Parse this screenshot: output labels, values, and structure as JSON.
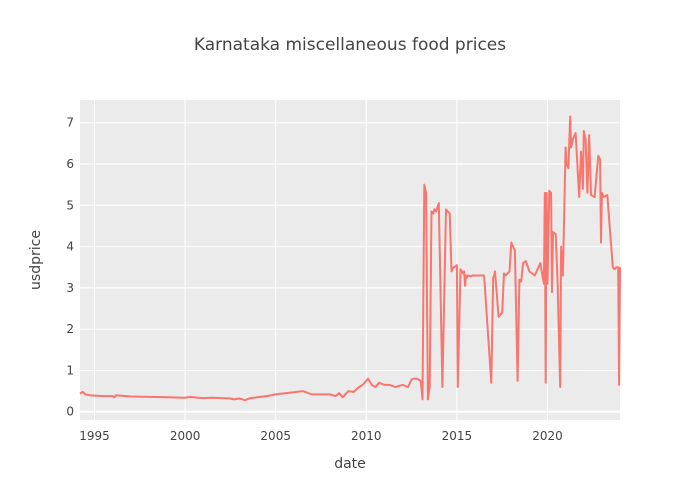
{
  "chart_data": {
    "type": "line",
    "title": "Karnataka miscellaneous food prices",
    "xlabel": "date",
    "ylabel": "usdprice",
    "xlim": [
      1994.2,
      2024.0
    ],
    "ylim": [
      -0.2,
      7.55
    ],
    "x_ticks": [
      1995,
      2000,
      2005,
      2010,
      2015,
      2020
    ],
    "y_ticks": [
      0,
      1,
      2,
      3,
      4,
      5,
      6,
      7
    ],
    "grid": true,
    "legend": "none",
    "colors": {
      "line": "#f8766d",
      "plot_bg": "#ebebeb",
      "grid": "#ffffff",
      "text": "#444444"
    },
    "series": [
      {
        "x": [
          1994.2,
          1994.35,
          1994.5,
          1994.7,
          1995.0,
          1995.5,
          1996.0,
          1996.1,
          1996.2,
          1996.4,
          1997,
          1998,
          1999,
          2000,
          2000.3,
          2000.7,
          2001,
          2001.5,
          2002,
          2002.5,
          2002.7,
          2003,
          2003.3,
          2003.6,
          2004,
          2004.5,
          2005,
          2005.5,
          2006,
          2006.5,
          2007,
          2007.5,
          2008,
          2008.3,
          2008.5,
          2008.7,
          2009,
          2009.3,
          2009.6,
          2009.8,
          2010,
          2010.1,
          2010.3,
          2010.5,
          2010.7,
          2011,
          2011.3,
          2011.6,
          2012,
          2012.3,
          2012.5,
          2012.6,
          2012.8,
          2013.0,
          2013.1,
          2013.2,
          2013.3,
          2013.4,
          2013.5,
          2013.6,
          2013.7,
          2013.75,
          2013.85,
          2014.0,
          2014.2,
          2014.4,
          2014.6,
          2014.7,
          2014.8,
          2014.85,
          2015.0,
          2015.05,
          2015.2,
          2015.35,
          2015.4,
          2015.45,
          2015.5,
          2015.55,
          2015.6,
          2015.8,
          2015.85,
          2016,
          2016.5,
          2016.9,
          2017,
          2017.05,
          2017.1,
          2017.3,
          2017.5,
          2017.6,
          2017.7,
          2017.9,
          2018,
          2018.2,
          2018.35,
          2018.45,
          2018.55,
          2018.65,
          2018.8,
          2019.0,
          2019.3,
          2019.6,
          2019.8,
          2019.85,
          2019.9,
          2019.95,
          2020.0,
          2020.1,
          2020.2,
          2020.25,
          2020.3,
          2020.45,
          2020.55,
          2020.7,
          2020.75,
          2020.85,
          2021.0,
          2021.05,
          2021.15,
          2021.25,
          2021.3,
          2021.4,
          2021.55,
          2021.75,
          2021.85,
          2021.95,
          2022.0,
          2022.1,
          2022.2,
          2022.3,
          2022.4,
          2022.6,
          2022.8,
          2022.9,
          2022.95,
          2023.0,
          2023.1,
          2023.3,
          2023.6,
          2023.7,
          2023.8,
          2023.9,
          2023.95,
          2024.0
        ],
        "y": [
          0.44,
          0.48,
          0.42,
          0.4,
          0.39,
          0.38,
          0.38,
          0.35,
          0.4,
          0.39,
          0.37,
          0.36,
          0.35,
          0.34,
          0.36,
          0.34,
          0.33,
          0.34,
          0.33,
          0.32,
          0.3,
          0.32,
          0.28,
          0.33,
          0.35,
          0.38,
          0.42,
          0.45,
          0.47,
          0.5,
          0.42,
          0.42,
          0.42,
          0.38,
          0.45,
          0.35,
          0.5,
          0.48,
          0.6,
          0.65,
          0.75,
          0.8,
          0.65,
          0.6,
          0.7,
          0.65,
          0.65,
          0.6,
          0.65,
          0.6,
          0.78,
          0.8,
          0.8,
          0.75,
          0.3,
          5.5,
          5.3,
          0.3,
          0.6,
          4.85,
          4.8,
          4.9,
          4.85,
          5.05,
          0.6,
          4.9,
          4.8,
          3.4,
          3.5,
          3.5,
          3.55,
          0.6,
          3.45,
          3.35,
          3.4,
          3.05,
          3.3,
          3.25,
          3.3,
          3.28,
          3.3,
          3.3,
          3.3,
          0.7,
          3.25,
          3.3,
          3.4,
          2.3,
          2.4,
          3.35,
          3.3,
          3.4,
          4.1,
          3.9,
          0.75,
          3.2,
          3.15,
          3.6,
          3.65,
          3.4,
          3.3,
          3.6,
          3.1,
          5.3,
          0.7,
          5.3,
          3.1,
          5.35,
          5.3,
          2.9,
          4.35,
          4.3,
          3.2,
          0.6,
          4.0,
          3.3,
          6.4,
          6.0,
          5.9,
          7.15,
          6.4,
          6.6,
          6.75,
          5.2,
          6.3,
          5.4,
          6.8,
          6.6,
          5.3,
          6.7,
          5.25,
          5.2,
          6.2,
          6.1,
          4.1,
          5.3,
          5.2,
          5.25,
          3.5,
          3.45,
          3.5,
          3.5,
          0.65,
          3.5
        ]
      }
    ]
  }
}
